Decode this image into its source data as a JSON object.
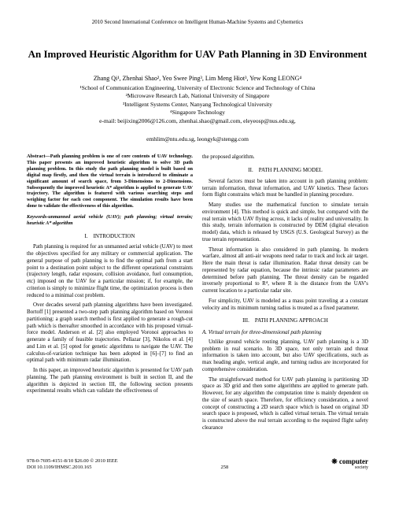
{
  "conference": "2010 Second International Conference on Intelligent Human-Machine Systems and Cybernetics",
  "title": "An Improved Heuristic Algorithm for UAV Path Planning in 3D Environment",
  "authors": "Zhang Qi¹, Zhenhai Shao², Yeo Swee Ping³, Lim Meng Hiot³, Yew Kong LEONG⁴",
  "affil1": "¹School of Communication Engineering, University of Electronic Science and Technology of China",
  "affil2": "²Microwave Research Lab, National University of Singapore",
  "affil3": "³Intelligent Systems Center, Nanyang Technological University",
  "affil4": "⁴Singapore Technology",
  "email1": "e-mail: beijixing2006@126.com, zhenhai.shao@gmail.com, eleyeosp@nus.edu.sg,",
  "email2": "emhlim@ntu.edu.sg, leongyk@stengg.com",
  "abstract": "Abstract—Path planning problem is one of core contents of UAV technology. This paper presents an improved heuristic algorithm to solve 3D path planning problem. In this study the path planning model is built based on digital map firstly, and then the virtual terrain is introduced to eliminate a significant amount of search space, from 3-Dimensions to 2-Dimensions. Subsequently the improved heuristic A* algorithm is applied to generate UAV trajectory. The algorithm is featured with various searching steps and weighing factor for each cost component. The simulation results have been done to validate the effectiveness of this algorithm.",
  "keywords": "Keywords-unmanned aerial vehicle (UAV); path planning; virtual terrain; heuristic A* algorithm",
  "sec1_head": "I. INTRODUCTION",
  "sec1_p1": "Path planning is required for an unmanned aerial vehicle (UAV) to meet the objectives specified for any military or commercial application. The general purpose of path planning is to find the optimal path from a start point to a destination point subject to the different operational constraints (trajectory length, radar exposure, collision avoidance, fuel consumption, etc) imposed on the UAV for a particular mission; if, for example, the criterion is simply to minimize flight time, the optimization process is then reduced to a minimal cost problem.",
  "sec1_p2": "Over decades several path planning algorithms have been investigated. Bortoff [1] presented a two-step path planning algorithm based on Voronoi partitioning: a graph search method is first applied to generate a rough-cut path which is thereafter smoothed in accordance with his proposed virtual-force model. Anderson et al. [2] also employed Voronoi approaches to generate a family of feasible trajectories. Pellazar [3], Nikolos et al. [4] and Lim et al. [5] opted for genetic algorithms to navigate the UAV. The calculus-of-variation technique has been adopted in [6]–[7] to find an optimal path with minimum radar illumination.",
  "sec1_p3": "In this paper, an improved heuristic algorithm is presented for UAV path planning. The path planning environment is built in section II, and the algorithm is depicted in section III, the following section presents experimental results which can validate the effectiveness of",
  "col2_top": "the proposed algorithm.",
  "sec2_head": "II. PATH PLANNING MODEL",
  "sec2_p1": "Several factors must be taken into account in path planning problem: terrain information, threat information, and UAV kinetics. These factors form flight constrains which must be handled in planning procedure.",
  "sec2_p2": "Many studies use the mathematical function to simulate terrain environment [4]. This method is quick and simple, but compared with the real terrain which UAV flying across, it lacks of reality and universality. In this study, terrain information is constructed by DEM (digital elevation model) data, which is released by USGS (U.S. Geological Survey) as the true terrain representation.",
  "sec2_p3": "Threat information is also considered in path planning. In modern warfare, almost all anti-air weapons need radar to track and lock air target. Here the main threat is radar illumination. Radar threat density can be represented by radar equation, because the intrinsic radar parameters are determined before path planning. The threat density can be regarded inversely proportional to R⁴, where R is the distance from the UAV's current location to a particular radar site.",
  "sec2_p4": "For simplicity, UAV is modeled as a mass point traveling at a constant velocity and its minimum turning radius is treated as a fixed parameter.",
  "sec3_head": "III. PATH PLANNING APPROACH",
  "sec3_sub": "A.   Virtual terrain for three-dimensional path planning",
  "sec3_p1": "Unlike ground vehicle routing planning, UAV path planning is a 3D problem in real scenario. In 3D space, not only terrain and threat information is taken into account, but also UAV specifications, such as max heading angle, vertical angle, and turning radius are incorporated for comprehensive consideration.",
  "sec3_p2": "The straightforward method for UAV path planning is partitioning 3D space as 3D grid and then some algorithms are applied to generate path. However, for any algorithm the computation time is mainly dependent on the size of search space. Therefore, for efficiency consideration, a novel concept of constructing a 2D search space which is based on original 3D search space is proposed, which is called virtual terrain. The virtual terrain is constructed above the real terrain according to the required flight safety clearance",
  "footer_left1": "978-0-7695-4151-8/10 $26.00 © 2010 IEEE",
  "footer_left2": "DOI 10.1109/IHMSC.2010.165",
  "footer_page": "258",
  "footer_logo_top": "❋ computer",
  "footer_logo_bot": "society"
}
